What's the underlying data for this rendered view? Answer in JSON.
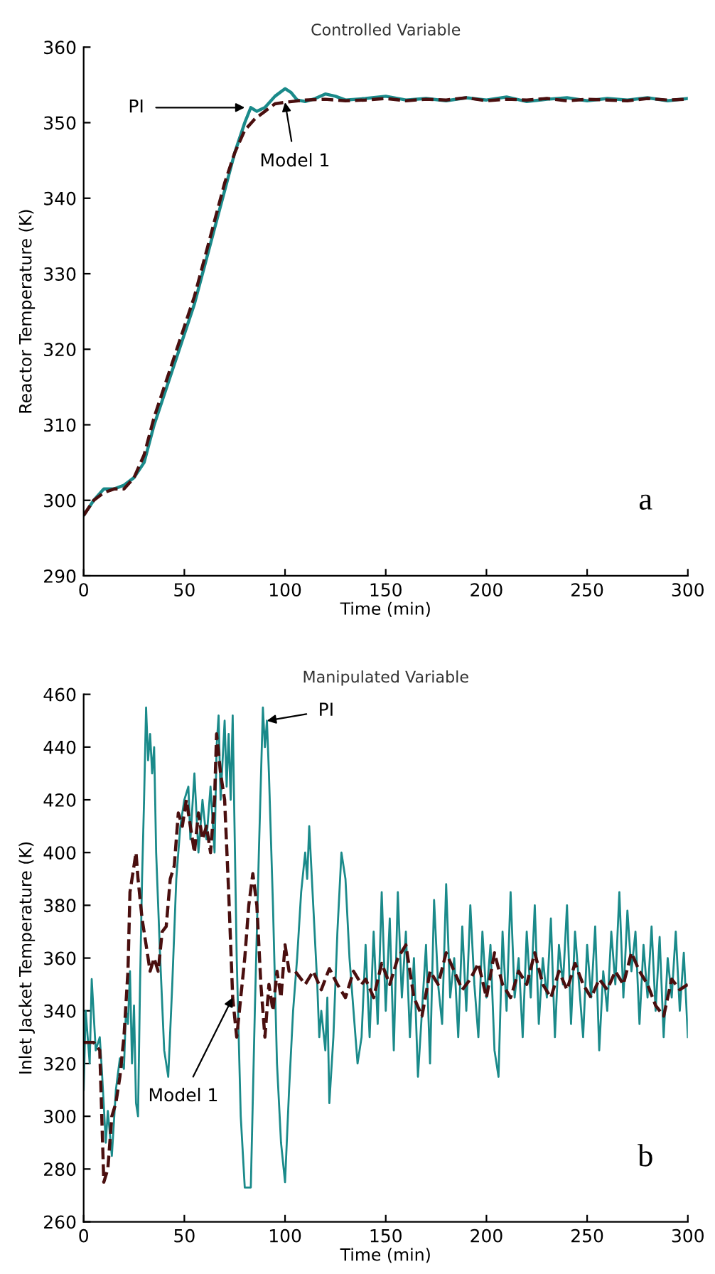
{
  "chart_data": [
    {
      "type": "line",
      "title": "Controlled Variable",
      "xlabel": "Time (min)",
      "ylabel": "Reactor Temperature (K)",
      "xlim": [
        0,
        300
      ],
      "ylim": [
        290,
        360
      ],
      "xticks": [
        0,
        50,
        100,
        150,
        200,
        250,
        300
      ],
      "yticks": [
        290,
        300,
        310,
        320,
        330,
        340,
        350,
        360
      ],
      "grid": false,
      "series": [
        {
          "color": "#1a8a8a",
          "line_style": "solid",
          "x": [
            0,
            5,
            10,
            15,
            20,
            25,
            30,
            35,
            40,
            45,
            50,
            55,
            60,
            65,
            70,
            75,
            80,
            83,
            86,
            90,
            95,
            100,
            103,
            106,
            110,
            115,
            120,
            125,
            130,
            140,
            150,
            160,
            170,
            180,
            190,
            200,
            210,
            220,
            230,
            240,
            250,
            260,
            270,
            280,
            290,
            300
          ],
          "values": [
            298,
            300,
            301.5,
            301.5,
            302,
            303,
            305,
            310,
            314,
            318,
            322,
            326,
            331,
            336,
            341,
            346,
            350,
            352,
            351.5,
            352,
            353.5,
            354.5,
            354,
            353,
            352.8,
            353.2,
            353.8,
            353.5,
            353,
            353.2,
            353.5,
            353,
            353.2,
            352.9,
            353.3,
            353,
            353.4,
            352.8,
            353.1,
            353.3,
            352.9,
            353.2,
            353,
            353.3,
            352.9,
            353.2
          ]
        },
        {
          "color": "#4a0f0f",
          "line_style": "dashed",
          "x": [
            0,
            5,
            10,
            15,
            20,
            25,
            30,
            35,
            40,
            45,
            50,
            55,
            60,
            65,
            70,
            75,
            80,
            85,
            90,
            95,
            100,
            110,
            120,
            130,
            140,
            150,
            160,
            170,
            180,
            190,
            200,
            210,
            220,
            230,
            240,
            250,
            260,
            270,
            280,
            290,
            300
          ],
          "values": [
            298,
            300,
            301,
            301.5,
            301.5,
            303,
            306,
            311,
            315,
            319,
            323,
            327,
            332,
            337,
            342,
            346,
            349,
            350.5,
            351.5,
            352.5,
            352.7,
            353,
            353.1,
            352.9,
            353,
            353.2,
            352.9,
            353.1,
            353,
            353.3,
            352.9,
            353.1,
            353,
            353.2,
            352.9,
            353.1,
            353,
            352.9,
            353.2,
            353,
            353.1
          ]
        }
      ],
      "annotations": [
        {
          "text": "PI",
          "x": 80,
          "y": 352
        },
        {
          "text": "Model 1",
          "x": 100,
          "y": 352.7
        },
        "a"
      ]
    },
    {
      "type": "line",
      "title": "Manipulated Variable",
      "xlabel": "Time (min)",
      "ylabel": "Inlet Jacket Temperature (K)",
      "xlim": [
        0,
        300
      ],
      "ylim": [
        260,
        460
      ],
      "xticks": [
        0,
        50,
        100,
        150,
        200,
        250,
        300
      ],
      "yticks": [
        260,
        280,
        300,
        320,
        340,
        360,
        380,
        400,
        420,
        440,
        460
      ],
      "grid": false,
      "series": [
        {
          "color": "#1a8a8a",
          "line_style": "solid",
          "x": [
            0,
            1,
            3,
            4,
            6,
            8,
            9,
            11,
            12,
            14,
            16,
            18,
            20,
            21,
            22,
            23,
            24,
            25,
            26,
            27,
            28,
            29,
            30,
            31,
            32,
            33,
            34,
            35,
            36,
            38,
            40,
            42,
            44,
            46,
            48,
            50,
            52,
            53,
            55,
            57,
            59,
            61,
            63,
            65,
            66,
            67,
            68,
            70,
            71,
            72,
            73,
            74,
            76,
            78,
            80,
            83,
            85,
            87,
            89,
            90,
            91,
            92,
            94,
            96,
            98,
            100,
            102,
            104,
            106,
            108,
            110,
            111,
            112,
            114,
            116,
            117,
            118,
            120,
            121,
            122,
            124,
            126,
            128,
            130,
            132,
            134,
            136,
            138,
            140,
            142,
            144,
            146,
            148,
            150,
            152,
            154,
            156,
            158,
            160,
            162,
            164,
            166,
            168,
            170,
            172,
            174,
            176,
            178,
            180,
            182,
            184,
            186,
            188,
            190,
            192,
            194,
            196,
            198,
            200,
            202,
            204,
            206,
            208,
            210,
            212,
            214,
            216,
            218,
            220,
            222,
            224,
            226,
            228,
            230,
            232,
            234,
            236,
            238,
            240,
            242,
            244,
            246,
            248,
            250,
            252,
            254,
            256,
            258,
            260,
            262,
            264,
            266,
            268,
            270,
            272,
            274,
            276,
            278,
            280,
            282,
            284,
            286,
            288,
            290,
            292,
            294,
            296,
            298,
            300
          ],
          "values": [
            310,
            340,
            320,
            352,
            325,
            330,
            318,
            290,
            302,
            285,
            310,
            322,
            318,
            340,
            335,
            355,
            320,
            342,
            305,
            300,
            350,
            390,
            420,
            455,
            435,
            445,
            430,
            440,
            400,
            360,
            325,
            315,
            350,
            390,
            410,
            420,
            425,
            405,
            430,
            400,
            420,
            405,
            425,
            400,
            440,
            452,
            420,
            450,
            425,
            445,
            420,
            452,
            360,
            300,
            273,
            273,
            340,
            400,
            455,
            440,
            450,
            430,
            380,
            320,
            290,
            275,
            310,
            340,
            360,
            385,
            400,
            390,
            410,
            380,
            350,
            330,
            340,
            325,
            345,
            305,
            330,
            370,
            400,
            390,
            360,
            340,
            320,
            330,
            365,
            330,
            370,
            335,
            385,
            340,
            375,
            325,
            385,
            345,
            370,
            330,
            360,
            315,
            340,
            365,
            320,
            382,
            350,
            335,
            388,
            345,
            360,
            330,
            372,
            340,
            380,
            350,
            330,
            370,
            345,
            365,
            325,
            315,
            370,
            340,
            385,
            345,
            360,
            330,
            370,
            345,
            380,
            335,
            360,
            345,
            375,
            330,
            365,
            350,
            380,
            335,
            370,
            350,
            330,
            365,
            345,
            372,
            325,
            355,
            340,
            370,
            350,
            385,
            345,
            378,
            355,
            370,
            335,
            365,
            345,
            372,
            340,
            368,
            330,
            360,
            345,
            370,
            340,
            362,
            330
          ]
        },
        {
          "color": "#4a0f0f",
          "line_style": "dashed",
          "x": [
            0,
            5,
            8,
            10,
            12,
            14,
            16,
            18,
            20,
            22,
            23,
            25,
            26,
            27,
            29,
            31,
            33,
            35,
            37,
            39,
            41,
            43,
            45,
            47,
            49,
            51,
            53,
            55,
            57,
            59,
            61,
            63,
            65,
            66,
            68,
            70,
            72,
            74,
            76,
            78,
            80,
            82,
            84,
            86,
            88,
            90,
            92,
            94,
            96,
            98,
            100,
            102,
            105,
            110,
            114,
            118,
            122,
            126,
            130,
            134,
            138,
            140,
            144,
            148,
            152,
            156,
            160,
            164,
            168,
            172,
            176,
            180,
            184,
            188,
            192,
            196,
            200,
            204,
            208,
            212,
            216,
            220,
            224,
            228,
            232,
            236,
            240,
            244,
            248,
            252,
            256,
            260,
            264,
            268,
            272,
            276,
            280,
            284,
            288,
            292,
            296,
            300
          ],
          "values": [
            328,
            328,
            325,
            275,
            280,
            300,
            305,
            315,
            330,
            355,
            385,
            395,
            400,
            390,
            375,
            365,
            355,
            360,
            355,
            370,
            372,
            390,
            395,
            415,
            410,
            420,
            410,
            400,
            415,
            405,
            410,
            400,
            420,
            445,
            430,
            420,
            385,
            345,
            330,
            345,
            360,
            380,
            392,
            380,
            350,
            330,
            350,
            340,
            355,
            345,
            365,
            355,
            355,
            350,
            355,
            348,
            356,
            350,
            345,
            355,
            350,
            352,
            345,
            358,
            350,
            360,
            365,
            345,
            338,
            355,
            350,
            362,
            355,
            348,
            352,
            358,
            345,
            362,
            350,
            345,
            355,
            350,
            362,
            350,
            345,
            355,
            348,
            358,
            350,
            345,
            352,
            348,
            355,
            350,
            362,
            355,
            350,
            342,
            338,
            352,
            348,
            350
          ]
        }
      ],
      "annotations": [
        {
          "text": "PI",
          "x": 91,
          "y": 450
        },
        {
          "text": "Model 1",
          "x": 74,
          "y": 345
        },
        "b"
      ]
    }
  ]
}
